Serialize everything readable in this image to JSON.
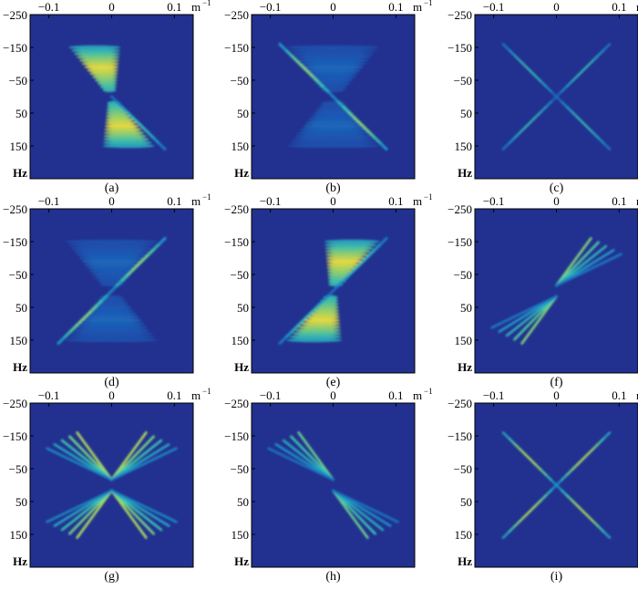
{
  "figure": {
    "plot_background": "#22318F",
    "colormap": [
      "#22318F",
      "#1B5CB8",
      "#1E96C8",
      "#3CC6B0",
      "#9ADB6A",
      "#F4E53A"
    ]
  },
  "axes": {
    "x_ticks": [
      {
        "value": -0.1,
        "label": "−0.1"
      },
      {
        "value": 0,
        "label": "0"
      },
      {
        "value": 0.1,
        "label": "0.1"
      }
    ],
    "x_unit": "m",
    "x_unit_exp": "−1",
    "y_ticks": [
      {
        "value": -250,
        "label": "−250"
      },
      {
        "value": -150,
        "label": "−150"
      },
      {
        "value": -50,
        "label": "−50"
      },
      {
        "value": 50,
        "label": "50"
      },
      {
        "value": 150,
        "label": "150"
      }
    ],
    "y_unit": "Hz"
  },
  "chart_data": [
    {
      "label": "(a)",
      "type": "heatmap",
      "xlim": [
        -0.13,
        0.13
      ],
      "ylim": [
        -250,
        250
      ],
      "features": [
        {
          "kind": "hourglass",
          "tilt": 0.018,
          "spread": 0.006,
          "peak": 1.0,
          "ripples": true
        },
        {
          "kind": "ray",
          "direction": "positive-slope",
          "upper": false,
          "peak": 0.55
        }
      ]
    },
    {
      "label": "(b)",
      "type": "heatmap",
      "xlim": [
        -0.13,
        0.13
      ],
      "ylim": [
        -250,
        250
      ],
      "features": [
        {
          "kind": "hourglass",
          "tilt": 0.0,
          "spread": 0.03,
          "peak": 0.25,
          "ripples": true
        },
        {
          "kind": "ray",
          "direction": "positive-slope",
          "upper": true,
          "lower": true,
          "peak": 0.75
        }
      ]
    },
    {
      "label": "(c)",
      "type": "heatmap",
      "xlim": [
        -0.13,
        0.13
      ],
      "ylim": [
        -250,
        250
      ],
      "features": [
        {
          "kind": "x-cross",
          "peak": 0.55
        }
      ]
    },
    {
      "label": "(d)",
      "type": "heatmap",
      "xlim": [
        -0.13,
        0.13
      ],
      "ylim": [
        -250,
        250
      ],
      "features": [
        {
          "kind": "hourglass",
          "tilt": 0.0,
          "spread": 0.03,
          "peak": 0.25,
          "ripples": true
        },
        {
          "kind": "ray",
          "direction": "negative-slope",
          "upper": true,
          "lower": true,
          "peak": 0.75
        }
      ]
    },
    {
      "label": "(e)",
      "type": "heatmap",
      "xlim": [
        -0.13,
        0.13
      ],
      "ylim": [
        -250,
        250
      ],
      "features": [
        {
          "kind": "hourglass",
          "tilt": -0.02,
          "spread": 0.008,
          "peak": 1.0,
          "ripples": true
        },
        {
          "kind": "ray",
          "direction": "negative-slope",
          "upper": true,
          "lower": true,
          "peak": 0.55
        }
      ]
    },
    {
      "label": "(f)",
      "type": "heatmap",
      "xlim": [
        -0.13,
        0.13
      ],
      "ylim": [
        -250,
        250
      ],
      "features": [
        {
          "kind": "fan",
          "direction": "negative-slope",
          "peak": 0.75
        }
      ]
    },
    {
      "label": "(g)",
      "type": "heatmap",
      "xlim": [
        -0.13,
        0.13
      ],
      "ylim": [
        -250,
        250
      ],
      "features": [
        {
          "kind": "fan",
          "direction": "both",
          "peak": 0.85
        }
      ]
    },
    {
      "label": "(h)",
      "type": "heatmap",
      "xlim": [
        -0.13,
        0.13
      ],
      "ylim": [
        -250,
        250
      ],
      "features": [
        {
          "kind": "fan",
          "direction": "positive-slope",
          "peak": 0.7
        }
      ]
    },
    {
      "label": "(i)",
      "type": "heatmap",
      "xlim": [
        -0.13,
        0.13
      ],
      "ylim": [
        -250,
        250
      ],
      "features": [
        {
          "kind": "x-cross",
          "peak": 0.85
        }
      ]
    }
  ]
}
